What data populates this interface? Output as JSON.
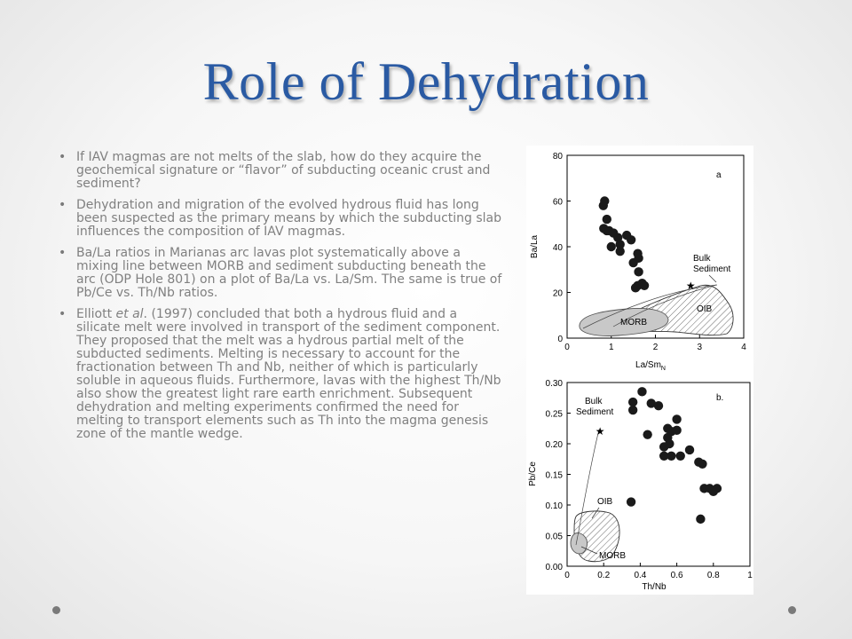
{
  "slide": {
    "title": "Role of Dehydration",
    "bullets": [
      {
        "text": "If IAV magmas are not melts of the slab, how do they acquire the geochemical signature or “flavor” of subducting oceanic crust and sediment?"
      },
      {
        "text": "Dehydration and migration of the evolved hydrous fluid has long been suspected as the primary means by which the subducting slab influences the composition of IAV magmas."
      },
      {
        "text": "Ba/La ratios in Marianas arc lavas plot systematically above a mixing line between MORB and sediment subducting beneath the arc (ODP Hole 801)  on a plot of Ba/La vs. La/Sm. The same is true of Pb/Ce vs. Th/Nb ratios."
      },
      {
        "text_before": "Elliott ",
        "text_em": "et al",
        "text_after": ". (1997)  concluded that both a hydrous fluid and a silicate melt were involved in transport of the sediment component. They proposed that the melt was a hydrous partial  melt of the subducted sediments. Melting is necessary to account for the fractionation between Th and Nb, neither of which is particularly soluble in aqueous fluids. Furthermore,  lavas with the highest Th/Nb also show the greatest light rare earth enrichment. Subsequent dehydration and melting experiments confirmed the need for melting to transport elements such as Th into the magma genesis zone of the mantle wedge."
      }
    ],
    "bullet_glyph": "•"
  },
  "chart_data": [
    {
      "type": "scatter",
      "panel_label": "a",
      "xlabel": "La/Sm",
      "xlabel_sub": "N",
      "ylabel": "Ba/La",
      "xlim": [
        0,
        4
      ],
      "ylim": [
        0,
        80
      ],
      "xticks": [
        0,
        1,
        2,
        3,
        4
      ],
      "yticks": [
        0,
        20,
        40,
        60,
        80
      ],
      "points": [
        [
          0.82,
          58
        ],
        [
          0.85,
          60
        ],
        [
          0.83,
          48
        ],
        [
          0.9,
          52
        ],
        [
          0.9,
          47
        ],
        [
          0.95,
          47
        ],
        [
          1.0,
          40
        ],
        [
          1.05,
          46
        ],
        [
          1.15,
          44
        ],
        [
          1.2,
          41
        ],
        [
          1.2,
          38
        ],
        [
          1.35,
          45
        ],
        [
          1.45,
          43
        ],
        [
          1.5,
          33
        ],
        [
          1.6,
          37
        ],
        [
          1.62,
          35
        ],
        [
          1.62,
          29
        ],
        [
          1.7,
          24
        ],
        [
          1.6,
          23
        ],
        [
          1.55,
          22
        ],
        [
          1.75,
          23
        ]
      ],
      "regions": [
        {
          "label": "MORB",
          "fill": "solid-gray"
        },
        {
          "label": "OIB",
          "fill": "hatched"
        }
      ],
      "annotation": {
        "label_line1": "Bulk",
        "label_line2": "Sediment",
        "marker": "★",
        "x": 2.8,
        "y": 23
      },
      "grid": false
    },
    {
      "type": "scatter",
      "panel_label": "b.",
      "xlabel": "Th/Nb",
      "ylabel": "Pb/Ce",
      "xlim": [
        0,
        1
      ],
      "ylim": [
        0,
        0.3
      ],
      "xticks": [
        "0",
        "0.2",
        "0.4",
        "0.6",
        "0.8",
        "1"
      ],
      "yticks": [
        "0.00",
        "0.05",
        "0.10",
        "0.15",
        "0.20",
        "0.25",
        "0.30"
      ],
      "points": [
        [
          0.36,
          0.268
        ],
        [
          0.36,
          0.255
        ],
        [
          0.41,
          0.285
        ],
        [
          0.46,
          0.266
        ],
        [
          0.5,
          0.262
        ],
        [
          0.44,
          0.215
        ],
        [
          0.55,
          0.225
        ],
        [
          0.55,
          0.21
        ],
        [
          0.57,
          0.22
        ],
        [
          0.6,
          0.24
        ],
        [
          0.6,
          0.222
        ],
        [
          0.56,
          0.2
        ],
        [
          0.53,
          0.195
        ],
        [
          0.57,
          0.18
        ],
        [
          0.53,
          0.18
        ],
        [
          0.62,
          0.18
        ],
        [
          0.67,
          0.19
        ],
        [
          0.72,
          0.17
        ],
        [
          0.74,
          0.167
        ],
        [
          0.75,
          0.127
        ],
        [
          0.78,
          0.127
        ],
        [
          0.8,
          0.122
        ],
        [
          0.82,
          0.127
        ],
        [
          0.73,
          0.077
        ],
        [
          0.35,
          0.105
        ]
      ],
      "regions": [
        {
          "label": "OIB",
          "fill": "hatched"
        },
        {
          "label": "MORB",
          "fill": "solid-gray"
        }
      ],
      "annotation": {
        "label_line1": "Bulk",
        "label_line2": "Sediment",
        "marker": "★",
        "x": 0.18,
        "y": 0.22
      },
      "grid": false
    }
  ],
  "colors": {
    "title": "#2a5aa3",
    "body_text": "#808080",
    "points": "#1a1a1a",
    "morb_fill": "#c8c8c8"
  }
}
